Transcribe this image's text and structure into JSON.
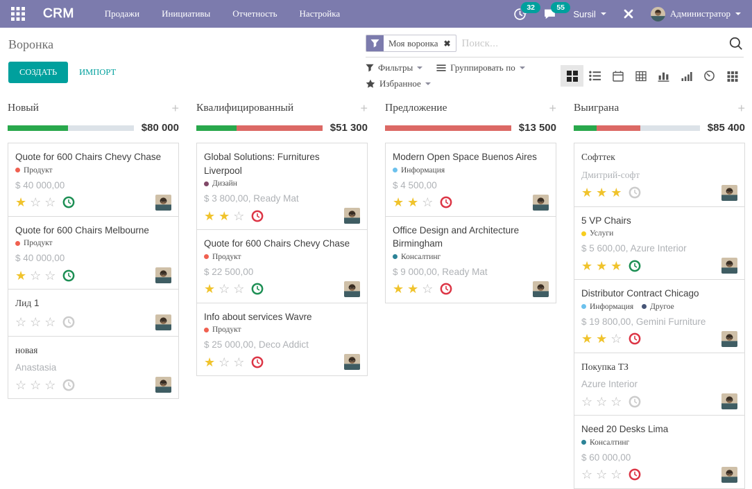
{
  "app": {
    "name": "CRM"
  },
  "nav": {
    "menus": [
      "Продажи",
      "Инициативы",
      "Отчетность",
      "Настройка"
    ],
    "systray": {
      "activity_icon": "activity-clock-icon",
      "activity_count": "32",
      "messages_icon": "messages-icon",
      "message_count": "55",
      "company": "Sursil",
      "tools_icon": "tools-icon",
      "user": "Администратор",
      "apps_icon": "apps-menu-icon"
    }
  },
  "control_panel": {
    "breadcrumb": "Воронка",
    "create_label": "СОЗДАТЬ",
    "import_label": "ИМПОРТ",
    "search": {
      "facet_icon": "filter-funnel-icon",
      "facet_label": "Моя воронка",
      "facet_remove_icon": "remove-facet-icon",
      "placeholder": "Поиск...",
      "magnifier_icon": "search-icon"
    },
    "filter_menus": [
      {
        "icon": "filter-funnel-icon",
        "label": "Фильтры"
      },
      {
        "icon": "group-by-icon",
        "label": "Группировать по"
      },
      {
        "icon": "favorite-star-icon",
        "label": "Избранное"
      }
    ],
    "view_switcher": [
      "kanban-icon",
      "list-icon",
      "calendar-icon",
      "pivot-icon",
      "graph-icon",
      "activity-icon",
      "dashboard-icon",
      "grid-icon"
    ],
    "active_view": "kanban-icon"
  },
  "kanban": {
    "columns": [
      {
        "title": "Новый",
        "amount": "$80 000",
        "progress": [
          {
            "color": "green",
            "pct": 48
          },
          {
            "color": "muted",
            "pct": 52
          }
        ],
        "cards": [
          {
            "title": "Quote for 600 Chairs Chevy Chase",
            "tags": [
              {
                "label": "Продукт",
                "color": "#f06050"
              }
            ],
            "subtitle": "$ 40 000,00",
            "stars": 1,
            "clock": "green"
          },
          {
            "title": "Quote for 600 Chairs Melbourne",
            "tags": [
              {
                "label": "Продукт",
                "color": "#f06050"
              }
            ],
            "subtitle": "$ 40 000,00",
            "stars": 1,
            "clock": "green"
          },
          {
            "title": "Лид 1",
            "tags": [],
            "subtitle": "",
            "stars": 0,
            "clock": "gray"
          },
          {
            "title": "новая",
            "tags": [],
            "subtitle": "Anastasia",
            "stars": 0,
            "clock": "gray"
          }
        ]
      },
      {
        "title": "Квалифицированный",
        "amount": "$51 300",
        "progress": [
          {
            "color": "green",
            "pct": 32
          },
          {
            "color": "red",
            "pct": 68
          }
        ],
        "cards": [
          {
            "title": "Global Solutions: Furnitures Liverpool",
            "tags": [
              {
                "label": "Дизайн",
                "color": "#814968"
              }
            ],
            "subtitle": "$ 3 800,00, Ready Mat",
            "stars": 2,
            "clock": "red"
          },
          {
            "title": "Quote for 600 Chairs Chevy Chase",
            "tags": [
              {
                "label": "Продукт",
                "color": "#f06050"
              }
            ],
            "subtitle": "$ 22 500,00",
            "stars": 1,
            "clock": "green"
          },
          {
            "title": "Info about services Wavre",
            "tags": [
              {
                "label": "Продукт",
                "color": "#f06050"
              }
            ],
            "subtitle": "$ 25 000,00, Deco Addict",
            "stars": 1,
            "clock": "red"
          }
        ]
      },
      {
        "title": "Предложение",
        "amount": "$13 500",
        "progress": [
          {
            "color": "red",
            "pct": 100
          }
        ],
        "cards": [
          {
            "title": "Modern Open Space Buenos Aires",
            "tags": [
              {
                "label": "Информация",
                "color": "#6cc1ed"
              }
            ],
            "subtitle": "$ 4 500,00",
            "stars": 2,
            "clock": "red"
          },
          {
            "title": "Office Design and Architecture Birmingham",
            "tags": [
              {
                "label": "Консалтинг",
                "color": "#2c8397"
              }
            ],
            "subtitle": "$ 9 000,00, Ready Mat",
            "stars": 2,
            "clock": "red"
          }
        ]
      },
      {
        "title": "Выиграна",
        "amount": "$85 400",
        "progress": [
          {
            "color": "green",
            "pct": 18
          },
          {
            "color": "red",
            "pct": 35
          },
          {
            "color": "muted",
            "pct": 47
          }
        ],
        "cards": [
          {
            "title": "Софттек",
            "tags": [],
            "subtitle": "Дмитрий-софт",
            "stars": 3,
            "clock": "gray"
          },
          {
            "title": "5 VP Chairs",
            "tags": [
              {
                "label": "Услуги",
                "color": "#f7cd1f"
              }
            ],
            "subtitle": "$ 5 600,00, Azure Interior",
            "stars": 3,
            "clock": "green"
          },
          {
            "title": "Distributor Contract Chicago",
            "tags": [
              {
                "label": "Информация",
                "color": "#6cc1ed"
              },
              {
                "label": "Другое",
                "color": "#475577"
              }
            ],
            "subtitle": "$ 19 800,00, Gemini Furniture",
            "stars": 2,
            "clock": "red"
          },
          {
            "title": "Покупка ТЗ",
            "tags": [],
            "subtitle": "Azure Interior",
            "stars": 0,
            "clock": "gray"
          },
          {
            "title": "Need 20 Desks Lima",
            "tags": [
              {
                "label": "Консалтинг",
                "color": "#2c8397"
              }
            ],
            "subtitle": "$ 60 000,00",
            "stars": 0,
            "clock": "red"
          }
        ]
      }
    ],
    "max_stars": 3
  },
  "colors": {
    "navbar": "#7c7bad",
    "accent": "#00a09d",
    "progress_green": "#29a84c",
    "progress_red": "#dc6965",
    "progress_muted": "#dce2e8",
    "clock_green": "#1d8f54",
    "clock_red": "#dc3545",
    "clock_gray": "#cccccc",
    "star_gold": "#f0c32c"
  }
}
